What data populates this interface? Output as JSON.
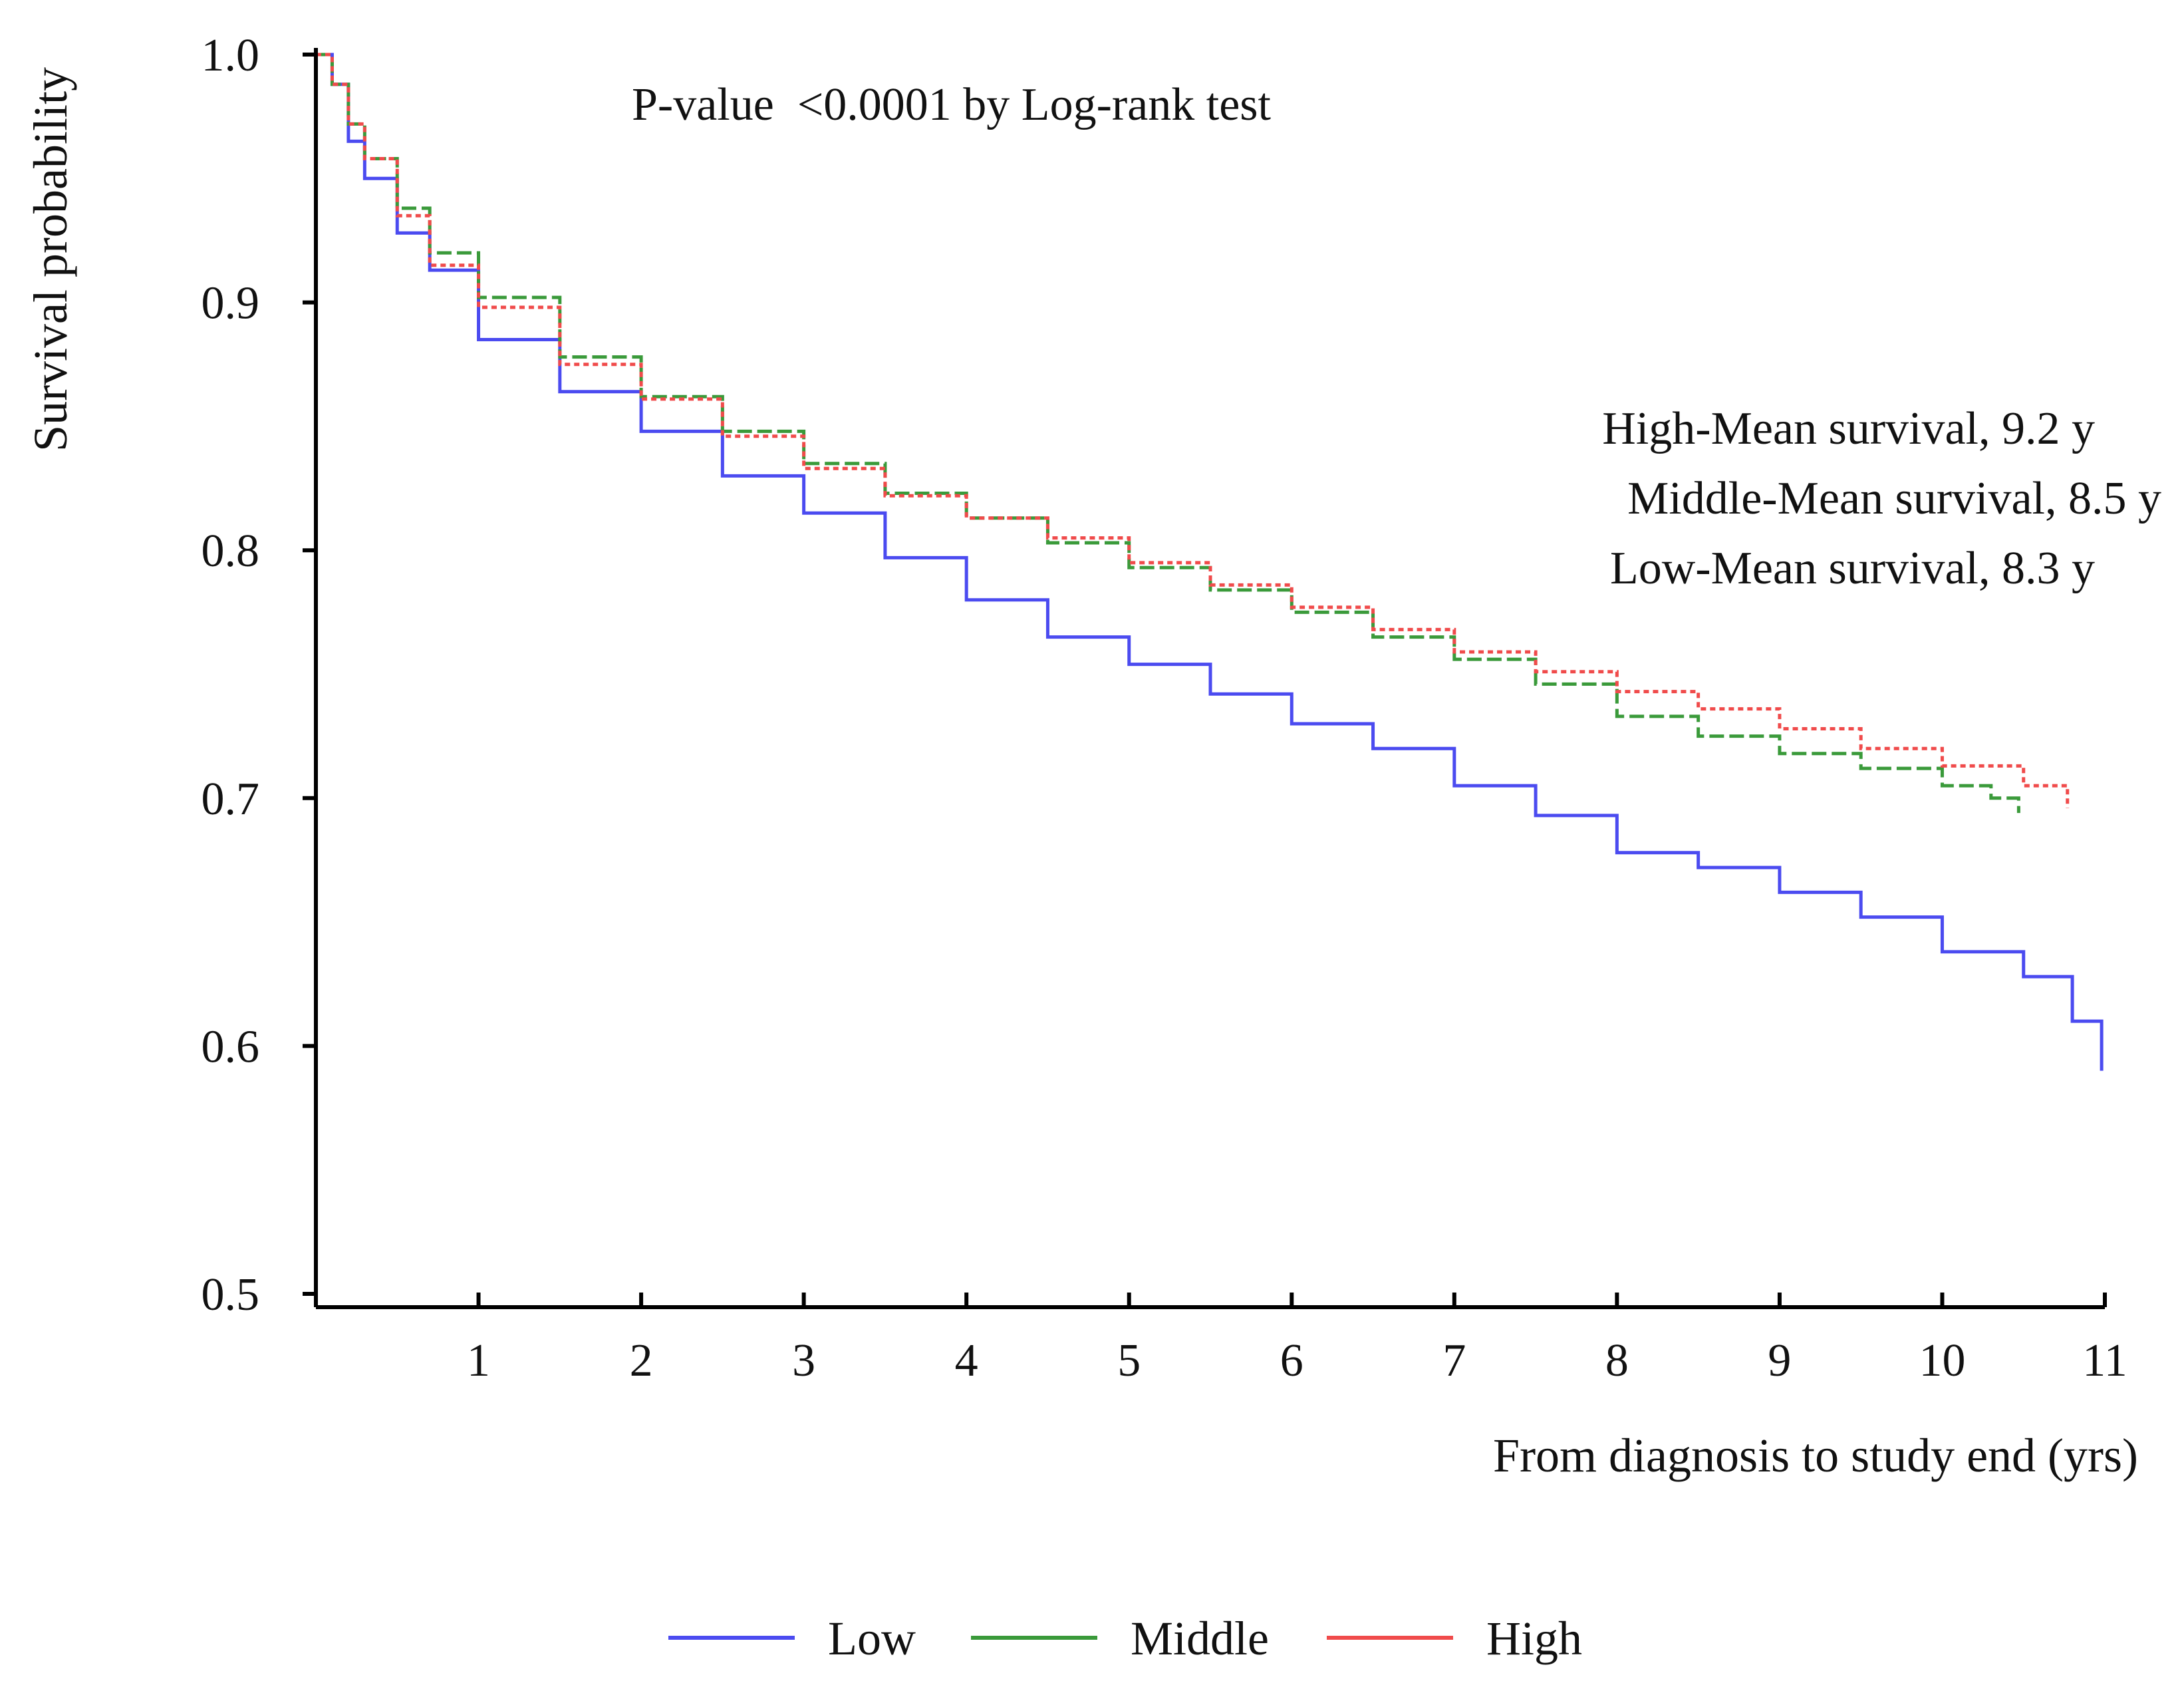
{
  "chart_data": {
    "type": "line",
    "subtype": "kaplan-meier step curve",
    "title": "",
    "xlabel": "From diagnosis to study end (yrs)",
    "ylabel": "Survival probability",
    "xlim": [
      0,
      11
    ],
    "ylim": [
      0.5,
      1.0
    ],
    "x_ticks": [
      1,
      2,
      3,
      4,
      5,
      6,
      7,
      8,
      9,
      10,
      11
    ],
    "y_ticks": [
      0.5,
      0.6,
      0.7,
      0.8,
      0.9,
      1.0
    ],
    "y_tick_labels": [
      "0.5",
      "0.6",
      "0.7",
      "0.8",
      "0.9",
      "1.0"
    ],
    "grid": false,
    "annotations": {
      "pvalue": "P-value  <0.0001 by Log-rank test",
      "mean_high": "High-Mean survival, 9.2 y",
      "mean_middle": "Middle-Mean survival, 8.5 y",
      "mean_low": "Low-Mean survival, 8.3 y"
    },
    "legend": {
      "position": "bottom-center",
      "entries": [
        "Low",
        "Middle",
        "High"
      ]
    },
    "series": [
      {
        "name": "Low",
        "color": "#4b4bf0",
        "line_style": "solid",
        "x": [
          0,
          0.1,
          0.2,
          0.3,
          0.5,
          0.7,
          1.0,
          1.5,
          2.0,
          2.5,
          3.0,
          3.5,
          4.0,
          4.5,
          5.0,
          5.5,
          6.0,
          6.5,
          7.0,
          7.5,
          8.0,
          8.5,
          9.0,
          9.5,
          10.0,
          10.3,
          10.5,
          10.8,
          10.98
        ],
        "y": [
          1.0,
          0.988,
          0.965,
          0.95,
          0.928,
          0.913,
          0.885,
          0.864,
          0.848,
          0.83,
          0.815,
          0.797,
          0.78,
          0.765,
          0.754,
          0.742,
          0.73,
          0.72,
          0.705,
          0.693,
          0.678,
          0.672,
          0.662,
          0.652,
          0.638,
          0.638,
          0.628,
          0.61,
          0.59
        ]
      },
      {
        "name": "Middle",
        "color": "#3a9a3a",
        "line_style": "dashed",
        "x": [
          0,
          0.1,
          0.2,
          0.3,
          0.5,
          0.7,
          1.0,
          1.5,
          2.0,
          2.5,
          3.0,
          3.5,
          4.0,
          4.5,
          5.0,
          5.5,
          6.0,
          6.5,
          7.0,
          7.5,
          8.0,
          8.5,
          9.0,
          9.5,
          10.0,
          10.3,
          10.47
        ],
        "y": [
          1.0,
          0.988,
          0.972,
          0.958,
          0.938,
          0.92,
          0.902,
          0.878,
          0.862,
          0.848,
          0.835,
          0.823,
          0.813,
          0.803,
          0.793,
          0.784,
          0.775,
          0.765,
          0.756,
          0.746,
          0.733,
          0.725,
          0.718,
          0.712,
          0.705,
          0.7,
          0.694
        ]
      },
      {
        "name": "High",
        "color": "#f04b4b",
        "line_style": "dotted",
        "x": [
          0,
          0.1,
          0.2,
          0.3,
          0.5,
          0.7,
          1.0,
          1.5,
          2.0,
          2.5,
          3.0,
          3.5,
          4.0,
          4.5,
          5.0,
          5.5,
          6.0,
          6.5,
          7.0,
          7.5,
          8.0,
          8.5,
          9.0,
          9.5,
          10.0,
          10.5,
          10.77
        ],
        "y": [
          1.0,
          0.988,
          0.972,
          0.958,
          0.935,
          0.915,
          0.898,
          0.875,
          0.861,
          0.846,
          0.833,
          0.822,
          0.813,
          0.805,
          0.795,
          0.786,
          0.777,
          0.768,
          0.759,
          0.751,
          0.743,
          0.736,
          0.728,
          0.72,
          0.713,
          0.705,
          0.696
        ]
      }
    ]
  }
}
